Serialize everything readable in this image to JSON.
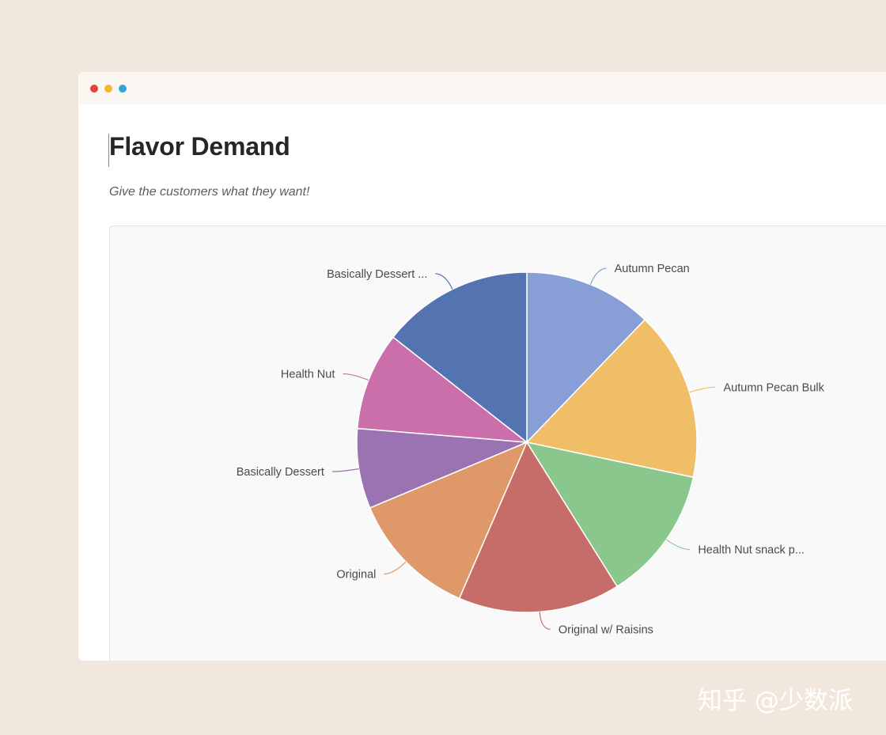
{
  "page": {
    "title": "Flavor Demand",
    "subtitle": "Give the customers what they want!"
  },
  "watermark": "知乎 @少数派",
  "colors": {
    "background": "#f2e7dd",
    "window": "#ffffff",
    "chart_card": "#f9f9f9",
    "dot_red": "#e1463d",
    "dot_yellow": "#f5b731",
    "dot_blue": "#30a6d9"
  },
  "chart_data": {
    "type": "pie",
    "start_angle_deg": 0,
    "direction": "clockwise",
    "slices": [
      {
        "label": "Autumn Pecan",
        "value": 12.2,
        "color": "#879fd6"
      },
      {
        "label": "Autumn Pecan Bulk",
        "value": 16.1,
        "color": "#efbe67"
      },
      {
        "label": "Health Nut snack p...",
        "value": 12.8,
        "color": "#89c78c"
      },
      {
        "label": "Original w/ Raisins",
        "value": 15.4,
        "color": "#c66d69"
      },
      {
        "label": "Original",
        "value": 12.2,
        "color": "#df986a"
      },
      {
        "label": "Basically Dessert",
        "value": 7.6,
        "color": "#9b73b3"
      },
      {
        "label": "Health Nut",
        "value": 9.3,
        "color": "#cb6fab"
      },
      {
        "label": "Basically Dessert ...",
        "value": 14.4,
        "color": "#5373b1"
      }
    ]
  }
}
